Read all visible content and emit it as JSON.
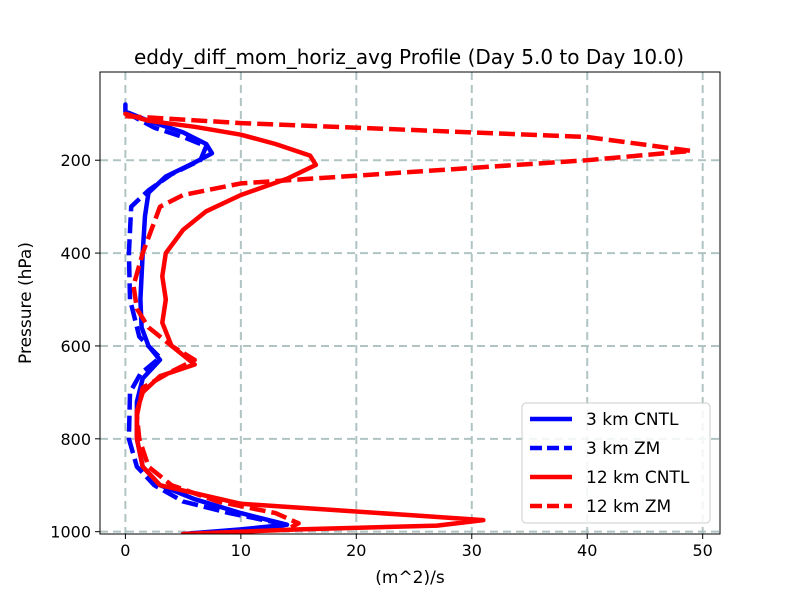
{
  "chart_data": {
    "type": "line",
    "title": "eddy_diff_mom_horiz_avg Profile (Day 5.0 to Day 10.0)",
    "xlabel": "(m^2)/s",
    "ylabel": "Pressure (hPa)",
    "xlim": [
      -2.2,
      51.5
    ],
    "ylim": [
      1005,
      10
    ],
    "y_inverted": true,
    "grid": true,
    "xticks": [
      0,
      10,
      20,
      30,
      40,
      50
    ],
    "yticks": [
      200,
      400,
      600,
      800,
      1000
    ],
    "legend_position": "lower-right",
    "series": [
      {
        "name": "3 km CNTL",
        "color": "#0000ff",
        "style": "solid",
        "points": [
          [
            0,
            80
          ],
          [
            0,
            95
          ],
          [
            2,
            115
          ],
          [
            5,
            140
          ],
          [
            7,
            165
          ],
          [
            7.5,
            185
          ],
          [
            6,
            205
          ],
          [
            3.5,
            235
          ],
          [
            2,
            270
          ],
          [
            1.7,
            320
          ],
          [
            1.5,
            400
          ],
          [
            1.3,
            500
          ],
          [
            1.4,
            560
          ],
          [
            2,
            600
          ],
          [
            3,
            630
          ],
          [
            1.5,
            670
          ],
          [
            1,
            720
          ],
          [
            1,
            800
          ],
          [
            1.5,
            860
          ],
          [
            3,
            900
          ],
          [
            6,
            930
          ],
          [
            10,
            960
          ],
          [
            14,
            985
          ],
          [
            10,
            995
          ],
          [
            5,
            1005
          ]
        ]
      },
      {
        "name": "3 km ZM",
        "color": "#0000ff",
        "style": "dashed",
        "points": [
          [
            0,
            95
          ],
          [
            1,
            110
          ],
          [
            2.5,
            130
          ],
          [
            5,
            150
          ],
          [
            7,
            170
          ],
          [
            6.5,
            200
          ],
          [
            4,
            230
          ],
          [
            2,
            265
          ],
          [
            0.5,
            300
          ],
          [
            0.3,
            400
          ],
          [
            0.4,
            500
          ],
          [
            1.2,
            580
          ],
          [
            3,
            625
          ],
          [
            1.3,
            660
          ],
          [
            0.4,
            700
          ],
          [
            0.3,
            800
          ],
          [
            1,
            860
          ],
          [
            2.5,
            900
          ],
          [
            5,
            935
          ],
          [
            9,
            960
          ],
          [
            14,
            985
          ],
          [
            12,
            995
          ]
        ]
      },
      {
        "name": "12 km CNTL",
        "color": "#ff0000",
        "style": "solid",
        "points": [
          [
            0,
            100
          ],
          [
            2,
            115
          ],
          [
            6,
            128
          ],
          [
            10,
            145
          ],
          [
            13,
            165
          ],
          [
            16,
            190
          ],
          [
            16.5,
            210
          ],
          [
            14,
            240
          ],
          [
            10,
            275
          ],
          [
            7,
            310
          ],
          [
            5,
            350
          ],
          [
            3.5,
            400
          ],
          [
            3.2,
            450
          ],
          [
            3.5,
            500
          ],
          [
            3.2,
            550
          ],
          [
            4,
            600
          ],
          [
            6,
            640
          ],
          [
            3,
            665
          ],
          [
            1.5,
            700
          ],
          [
            1,
            740
          ],
          [
            1,
            800
          ],
          [
            1.5,
            860
          ],
          [
            3,
            900
          ],
          [
            10,
            940
          ],
          [
            25,
            965
          ],
          [
            31,
            975
          ],
          [
            27,
            987
          ],
          [
            15,
            995
          ],
          [
            5,
            1005
          ]
        ]
      },
      {
        "name": "12 km ZM",
        "color": "#ff0000",
        "style": "dashed",
        "points": [
          [
            0,
            105
          ],
          [
            10,
            120
          ],
          [
            40,
            150
          ],
          [
            49,
            180
          ],
          [
            40,
            200
          ],
          [
            25,
            225
          ],
          [
            10,
            250
          ],
          [
            5,
            275
          ],
          [
            3,
            300
          ],
          [
            1.5,
            400
          ],
          [
            0.7,
            470
          ],
          [
            1,
            520
          ],
          [
            2,
            560
          ],
          [
            4,
            600
          ],
          [
            6,
            630
          ],
          [
            4,
            655
          ],
          [
            1.5,
            690
          ],
          [
            1,
            750
          ],
          [
            1.2,
            800
          ],
          [
            2,
            860
          ],
          [
            4,
            900
          ],
          [
            8,
            935
          ],
          [
            13,
            960
          ],
          [
            15,
            982
          ],
          [
            14,
            995
          ]
        ]
      }
    ]
  }
}
